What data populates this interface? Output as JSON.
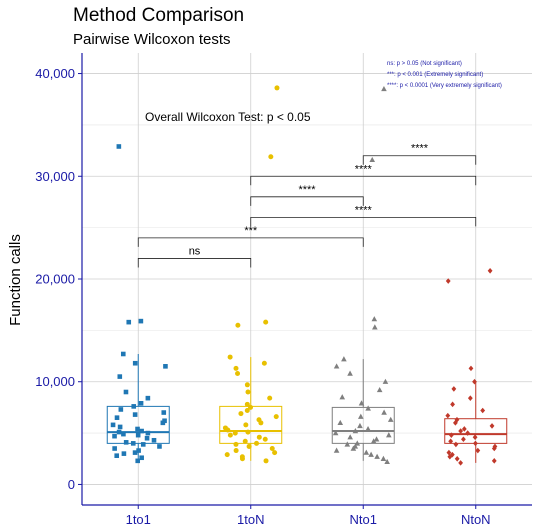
{
  "chart_data": {
    "type": "box",
    "title": "Method Comparison",
    "subtitle": "Pairwise Wilcoxon tests",
    "xlabel": "",
    "ylabel": "Function calls",
    "ylim": [
      -2000,
      42000
    ],
    "yticks": [
      0,
      10000,
      20000,
      30000,
      40000
    ],
    "ytick_labels": [
      "0",
      "10,000",
      "20,000",
      "30,000",
      "40,000"
    ],
    "grid": true,
    "categories": [
      "1to1",
      "1toN",
      "Nto1",
      "NtoN"
    ],
    "colors": {
      "1to1": "#1f77b4",
      "1toN": "#e8c000",
      "Nto1": "#7f7f7f",
      "NtoN": "#c0392b",
      "axis": "#1a1aa6"
    },
    "boxes": [
      {
        "group": "1to1",
        "q1": 4000,
        "median": 5100,
        "q3": 7600,
        "whisker_low": 2200,
        "whisker_high": 12700
      },
      {
        "group": "1toN",
        "q1": 4000,
        "median": 5200,
        "q3": 7600,
        "whisker_low": 2300,
        "whisker_high": 12400
      },
      {
        "group": "Nto1",
        "q1": 4000,
        "median": 5200,
        "q3": 7500,
        "whisker_low": 2300,
        "whisker_high": 12200
      },
      {
        "group": "NtoN",
        "q1": 4000,
        "median": 4900,
        "q3": 6400,
        "whisker_low": 2100,
        "whisker_high": 10000
      }
    ],
    "points": {
      "1to1": [
        2300,
        2600,
        2800,
        3000,
        3100,
        3300,
        3500,
        3700,
        3900,
        4000,
        4100,
        4300,
        4500,
        4700,
        4800,
        4900,
        5000,
        5100,
        5200,
        5400,
        5600,
        5800,
        6000,
        6200,
        6500,
        6800,
        7000,
        7300,
        7600,
        7900,
        8400,
        9000,
        10500,
        11500,
        11800,
        12700,
        15900,
        15800,
        32900
      ],
      "1toN": [
        2300,
        2500,
        2700,
        2900,
        3100,
        3300,
        3500,
        3700,
        3900,
        4000,
        4200,
        4400,
        4600,
        4800,
        5000,
        5100,
        5300,
        5500,
        5800,
        6000,
        6300,
        6600,
        6900,
        7200,
        7500,
        7800,
        8400,
        9000,
        9700,
        10800,
        11300,
        11800,
        12400,
        15500,
        15800,
        31900,
        38600
      ],
      "Nto1": [
        2200,
        2500,
        2700,
        2900,
        3100,
        3300,
        3500,
        3700,
        3900,
        4000,
        4200,
        4400,
        4600,
        4800,
        5000,
        5200,
        5400,
        5700,
        6000,
        6300,
        6600,
        7000,
        7400,
        7900,
        8500,
        9200,
        10000,
        10800,
        11500,
        12200,
        15300,
        16100,
        31600,
        38500
      ],
      "NtoN": [
        2100,
        2300,
        2500,
        2700,
        2900,
        3100,
        3300,
        3500,
        3700,
        3900,
        4000,
        4200,
        4400,
        4600,
        4800,
        5000,
        5200,
        5400,
        5700,
        6000,
        6300,
        6700,
        7200,
        7800,
        8400,
        9300,
        10000,
        11300,
        19800,
        20800
      ]
    },
    "comparisons": [
      {
        "from": "1to1",
        "to": "1toN",
        "y": 22000,
        "label": "ns"
      },
      {
        "from": "1to1",
        "to": "Nto1",
        "y": 24000,
        "label": "***"
      },
      {
        "from": "1toN",
        "to": "Nto1",
        "y": 28000,
        "label": "****"
      },
      {
        "from": "1toN",
        "to": "NtoN",
        "y": 30000,
        "label": "****"
      },
      {
        "from": "1toN",
        "to": "NtoN",
        "y": 26000,
        "label": "****"
      },
      {
        "from": "Nto1",
        "to": "NtoN",
        "y": 32000,
        "label": "****"
      }
    ],
    "overall_test": "Overall Wilcoxon Test: p < 0.05",
    "significance_legend": [
      "ns: p > 0.05 (Not significant)",
      "***: p < 0.001 (Extremely significant)",
      "****: p < 0.0001 (Very extremely significant)"
    ]
  }
}
